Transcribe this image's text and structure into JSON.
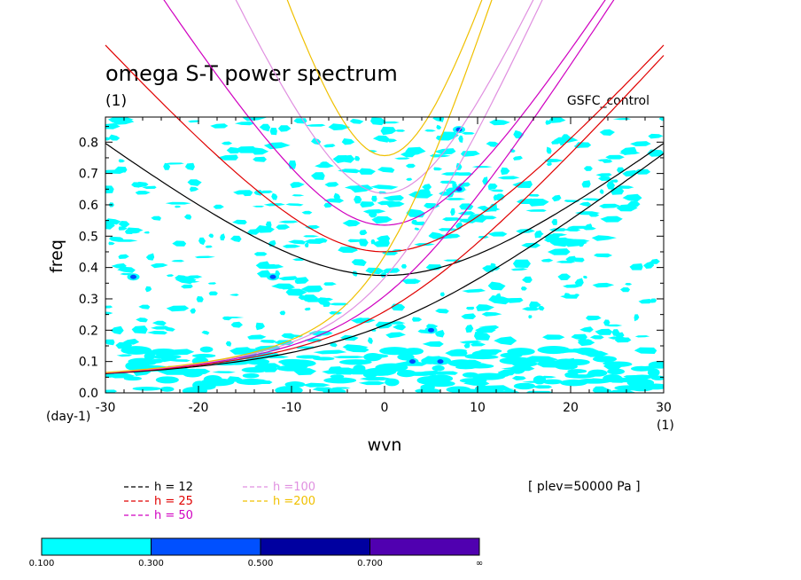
{
  "chart_data": {
    "type": "heatmap",
    "title": "omega S-T power spectrum",
    "subtitle": "(1)",
    "run_label": "GSFC_control",
    "level_note": "[ plev=50000 Pa ]",
    "xlabel": "wvn",
    "ylabel": "freq",
    "x_unit": "(1)",
    "y_unit": "(day-1)",
    "xlim": [
      -30,
      30
    ],
    "ylim": [
      0,
      0.88
    ],
    "x_ticks": [
      "-30",
      "-20",
      "-10",
      "0",
      "10",
      "20",
      "30"
    ],
    "y_ticks": [
      "0.0",
      "0.1",
      "0.2",
      "0.3",
      "0.4",
      "0.5",
      "0.6",
      "0.7",
      "0.8"
    ],
    "contour_levels": [
      "0.100",
      "0.300",
      "0.500",
      "0.700",
      "∞"
    ],
    "contour_colors": [
      "#00ffff",
      "#0050ff",
      "#0000a0",
      "#5000b0"
    ],
    "dispersion_curves": [
      {
        "name": "h = 12",
        "color": "#000000",
        "wave_types": [
          "inertio-gravity",
          "kelvin"
        ]
      },
      {
        "name": "h = 25",
        "color": "#e00000",
        "wave_types": [
          "inertio-gravity",
          "kelvin"
        ]
      },
      {
        "name": "h = 50",
        "color": "#d000c0",
        "wave_types": [
          "inertio-gravity",
          "kelvin"
        ]
      },
      {
        "name": "h =100",
        "color": "#e090e0",
        "wave_types": [
          "inertio-gravity",
          "kelvin"
        ]
      },
      {
        "name": "h =200",
        "color": "#f0c000",
        "wave_types": [
          "inertio-gravity",
          "kelvin"
        ]
      }
    ],
    "notable_peaks": [
      {
        "wvn": 3,
        "freq": 0.1,
        "level": "0.300-0.500"
      },
      {
        "wvn": 6,
        "freq": 0.1,
        "level": "0.300-0.500"
      },
      {
        "wvn": 8,
        "freq": 0.65,
        "level": "0.300-0.500"
      },
      {
        "wvn": 8,
        "freq": 0.84,
        "level": "0.300-0.500"
      },
      {
        "wvn": -27,
        "freq": 0.37,
        "level": "0.300-0.500"
      },
      {
        "wvn": -12,
        "freq": 0.37,
        "level": "0.300-0.500"
      },
      {
        "wvn": 5,
        "freq": 0.2,
        "level": "0.300-0.500"
      }
    ]
  }
}
